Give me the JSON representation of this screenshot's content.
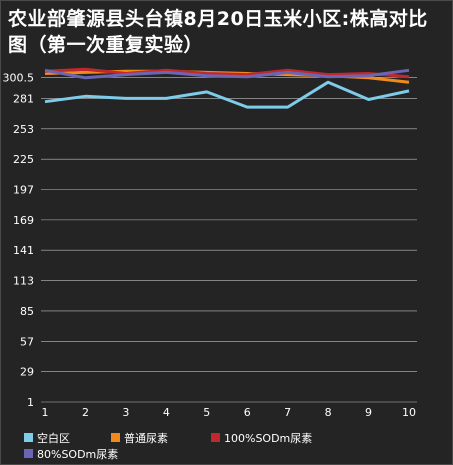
{
  "chart_data": {
    "type": "line",
    "title": "农业部肇源县头台镇8月20日玉米小区:株高对比图（第一次重复实验）",
    "categories": [
      "1",
      "2",
      "3",
      "4",
      "5",
      "6",
      "7",
      "8",
      "9",
      "10"
    ],
    "y_ticks": [
      "300.5",
      "281",
      "253",
      "225",
      "197",
      "169",
      "141",
      "113",
      "85",
      "57",
      "29",
      "1"
    ],
    "ylim": [
      1,
      310
    ],
    "grid": true,
    "legend_position": "bottom",
    "series": [
      {
        "name": "空白区",
        "color": "#7ecbea",
        "values": [
          278,
          283,
          281,
          281,
          287,
          273,
          273,
          296,
          280,
          288
        ]
      },
      {
        "name": "普通尿素",
        "color": "#f08a1c",
        "values": [
          304,
          305,
          306,
          306,
          305,
          304,
          303,
          302,
          300,
          296
        ]
      },
      {
        "name": "100%SODm尿素",
        "color": "#c0282e",
        "values": [
          306,
          308,
          304,
          307,
          304,
          303,
          307,
          303,
          304,
          301
        ]
      },
      {
        "name": "80%SODm尿素",
        "color": "#6a66b4",
        "values": [
          307,
          300,
          303,
          305,
          302,
          301,
          305,
          301,
          302,
          307
        ]
      }
    ]
  }
}
